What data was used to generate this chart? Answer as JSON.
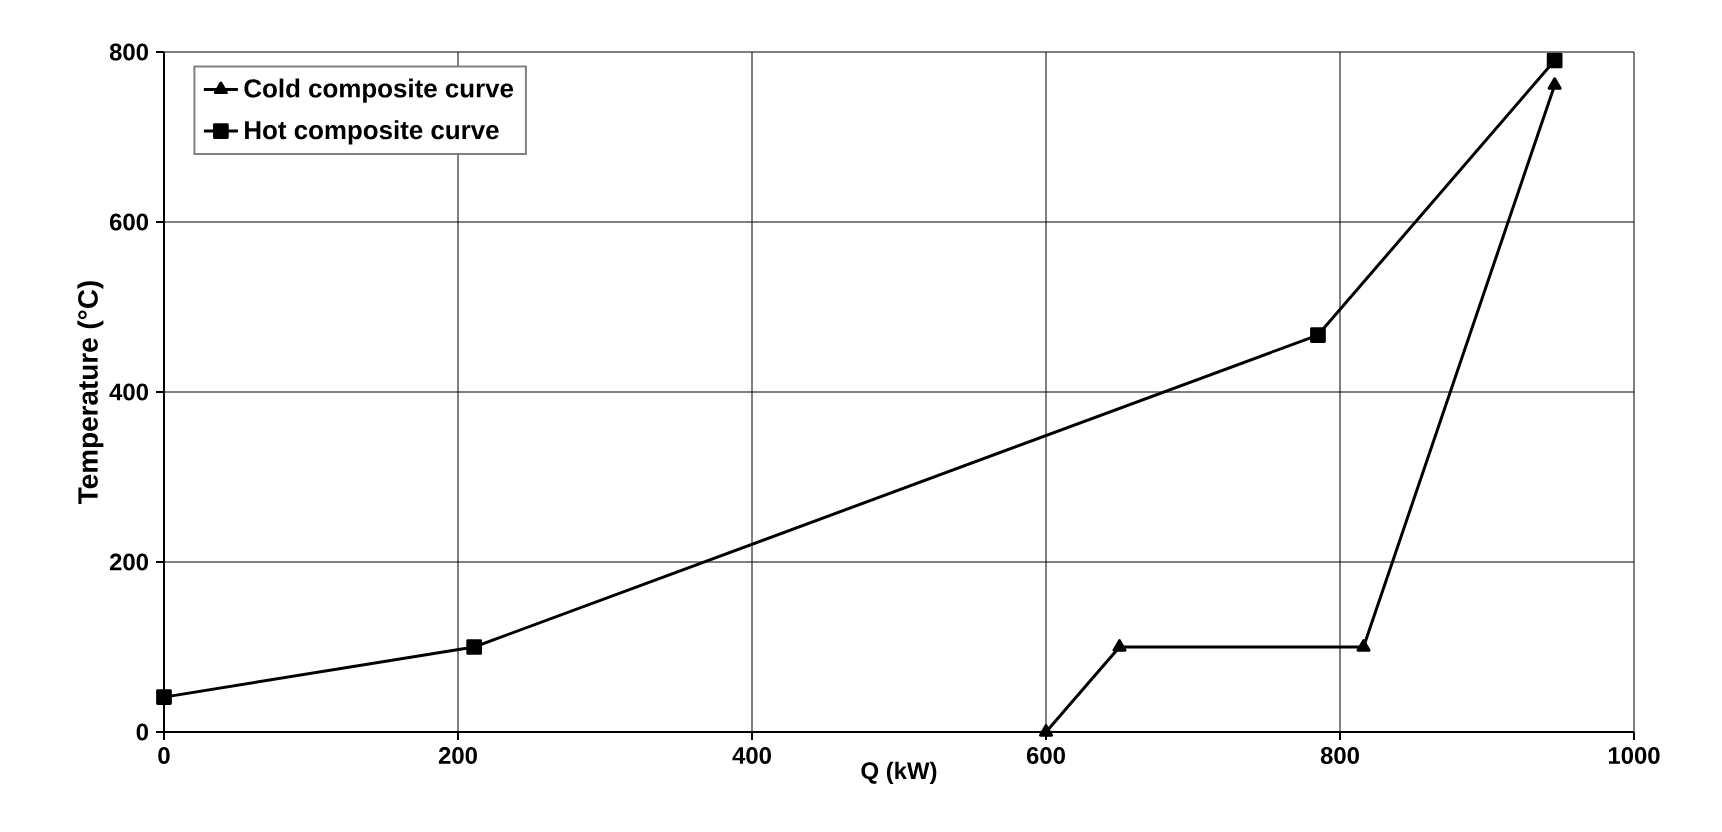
{
  "chart_data": {
    "type": "line",
    "xlabel": "Q (kW)",
    "ylabel": "Temperature (°C)",
    "series": [
      {
        "name": "Cold composite curve",
        "color": "#000000",
        "marker": "triangle",
        "x": [
          600,
          650,
          816,
          946
        ],
        "values": [
          0,
          100,
          100,
          761
        ]
      },
      {
        "name": "Hot  composite curve",
        "color": "#000000",
        "marker": "square",
        "x": [
          0,
          211,
          785,
          946
        ],
        "values": [
          41,
          100,
          467,
          790
        ]
      }
    ],
    "xlim": [
      0,
      1000
    ],
    "ylim": [
      0,
      800
    ],
    "xticks": [
      0,
      200,
      400,
      600,
      800,
      1000
    ],
    "yticks": [
      0,
      200,
      400,
      600,
      800
    ],
    "grid": true,
    "legend": "top left",
    "line_style": "solid"
  }
}
